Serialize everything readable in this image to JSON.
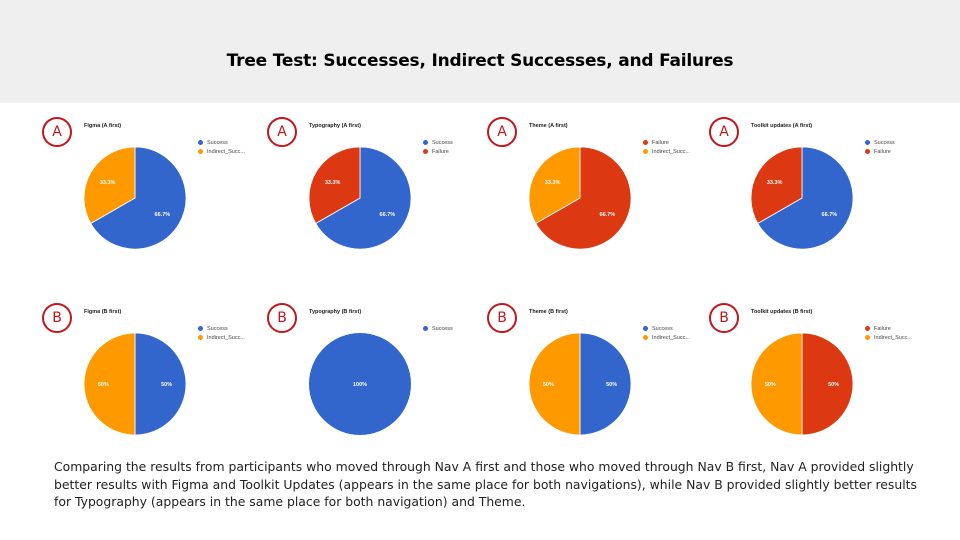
{
  "title": "Tree Test: Successes, Indirect Successes, and Failures",
  "caption": "Comparing the results from participants who moved through Nav A first and those who moved through Nav B first, Nav A provided slightly better results with Figma and Toolkit Updates (appears in the same place for both navigations), while Nav B provided slightly better results for Typography (appears in the same place for both navigation) and Theme.",
  "colors": {
    "Success": "#3366cc",
    "Indirect_Succ": "#ff9900",
    "Failure": "#dc3912"
  },
  "chart_data": [
    {
      "type": "pie",
      "badge": "A",
      "title": "Figma (A first)",
      "legend": [
        "Success",
        "Indirect_Succ..."
      ],
      "slices": [
        {
          "label": "Success",
          "value": 66.7,
          "text": "66.7%"
        },
        {
          "label": "Indirect_Succ",
          "value": 33.3,
          "text": "33.3%"
        }
      ]
    },
    {
      "type": "pie",
      "badge": "A",
      "title": "Typography (A first)",
      "legend": [
        "Success",
        "Failure"
      ],
      "slices": [
        {
          "label": "Success",
          "value": 66.7,
          "text": "66.7%"
        },
        {
          "label": "Failure",
          "value": 33.3,
          "text": "33.3%"
        }
      ]
    },
    {
      "type": "pie",
      "badge": "A",
      "title": "Theme (A first)",
      "legend": [
        "Failure",
        "Indirect_Succ..."
      ],
      "slices": [
        {
          "label": "Failure",
          "value": 66.7,
          "text": "66.7%"
        },
        {
          "label": "Indirect_Succ",
          "value": 33.3,
          "text": "33.3%"
        }
      ]
    },
    {
      "type": "pie",
      "badge": "A",
      "title": "Toolkit updates (A first)",
      "legend": [
        "Success",
        "Failure"
      ],
      "slices": [
        {
          "label": "Success",
          "value": 66.7,
          "text": "66.7%"
        },
        {
          "label": "Failure",
          "value": 33.3,
          "text": "33.3%"
        }
      ]
    },
    {
      "type": "pie",
      "badge": "B",
      "title": "Figma (B first)",
      "legend": [
        "Success",
        "Indirect_Succ..."
      ],
      "slices": [
        {
          "label": "Success",
          "value": 50,
          "text": "50%"
        },
        {
          "label": "Indirect_Succ",
          "value": 50,
          "text": "50%"
        }
      ]
    },
    {
      "type": "pie",
      "badge": "B",
      "title": "Typography (B first)",
      "legend": [
        "Success"
      ],
      "slices": [
        {
          "label": "Success",
          "value": 100,
          "text": "100%"
        }
      ]
    },
    {
      "type": "pie",
      "badge": "B",
      "title": "Theme (B first)",
      "legend": [
        "Success",
        "Indirect_Succ..."
      ],
      "slices": [
        {
          "label": "Success",
          "value": 50,
          "text": "50%"
        },
        {
          "label": "Indirect_Succ",
          "value": 50,
          "text": "50%"
        }
      ]
    },
    {
      "type": "pie",
      "badge": "B",
      "title": "Toolkit updates (B first)",
      "legend": [
        "Failure",
        "Indirect_Succ..."
      ],
      "slices": [
        {
          "label": "Failure",
          "value": 50,
          "text": "50%"
        },
        {
          "label": "Indirect_Succ",
          "value": 50,
          "text": "50%"
        }
      ]
    }
  ]
}
